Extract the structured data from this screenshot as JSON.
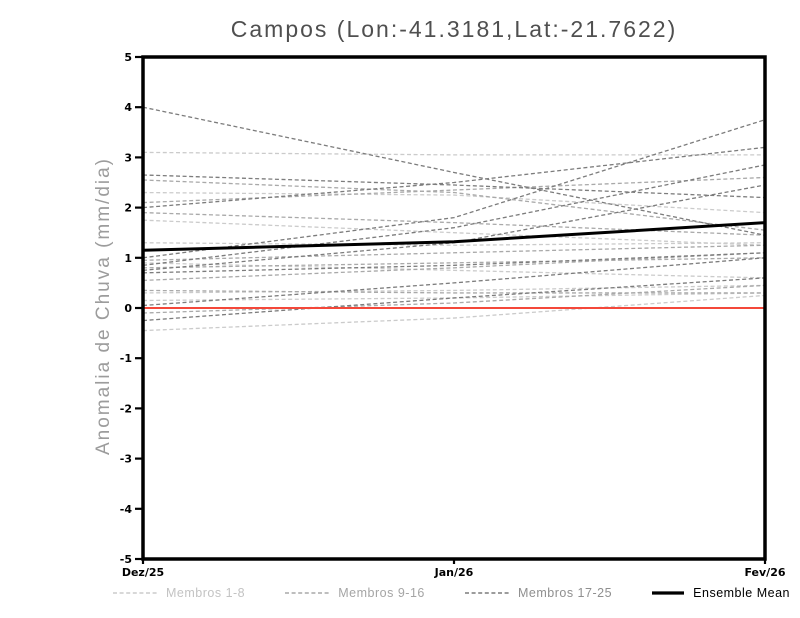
{
  "chart_data": {
    "type": "line",
    "title": "Campos (Lon:-41.3181,Lat:-21.7622)",
    "ylabel": "Anomalia de Chuva (mm/dia)",
    "x_categories": [
      "Dez/25",
      "Jan/26",
      "Fev/26"
    ],
    "ylim": [
      -5,
      5
    ],
    "yticks": [
      5,
      4,
      3,
      2,
      1,
      0,
      -1,
      -2,
      -3,
      -4,
      -5
    ],
    "grid": false,
    "legend_position": "bottom",
    "zero_line": {
      "value": 0,
      "color": "#f4483a"
    },
    "series": [
      {
        "name": "Membros 1-8",
        "color": "#cbcbcb",
        "text_color": "#c3c3c3",
        "style": "dashed",
        "members": [
          [
            3.1,
            3.05,
            3.05
          ],
          [
            2.3,
            2.25,
            1.9
          ],
          [
            1.75,
            1.5,
            1.25
          ],
          [
            1.3,
            1.25,
            1.3
          ],
          [
            0.9,
            0.75,
            0.6
          ],
          [
            0.3,
            0.35,
            0.45
          ],
          [
            0.15,
            0.2,
            0.3
          ],
          [
            -0.45,
            -0.2,
            0.25
          ]
        ]
      },
      {
        "name": "Membros 9-16",
        "color": "#a9a9a9",
        "text_color": "#a5a5a5",
        "style": "dashed",
        "members": [
          [
            2.55,
            2.3,
            1.55
          ],
          [
            2.1,
            2.35,
            2.6
          ],
          [
            1.9,
            1.7,
            1.45
          ],
          [
            0.95,
            1.1,
            1.25
          ],
          [
            0.8,
            0.9,
            1.0
          ],
          [
            0.55,
            0.8,
            1.1
          ],
          [
            0.35,
            0.3,
            0.3
          ],
          [
            -0.1,
            0.1,
            0.45
          ]
        ]
      },
      {
        "name": "Membros 17-25",
        "color": "#7c7c7c",
        "text_color": "#8f8f8f",
        "style": "dashed",
        "members": [
          [
            4.0,
            2.7,
            1.45
          ],
          [
            2.65,
            2.45,
            2.2
          ],
          [
            2.0,
            2.5,
            3.2
          ],
          [
            1.0,
            1.8,
            3.75
          ],
          [
            0.85,
            1.6,
            2.85
          ],
          [
            0.75,
            1.3,
            2.45
          ],
          [
            0.7,
            0.85,
            1.1
          ],
          [
            0.05,
            0.5,
            1.0
          ],
          [
            -0.25,
            0.2,
            0.6
          ]
        ]
      },
      {
        "name": "Ensemble Mean",
        "color": "#000000",
        "text_color": "#000000",
        "style": "solid",
        "members": [
          [
            1.15,
            1.32,
            1.7
          ]
        ]
      }
    ]
  }
}
